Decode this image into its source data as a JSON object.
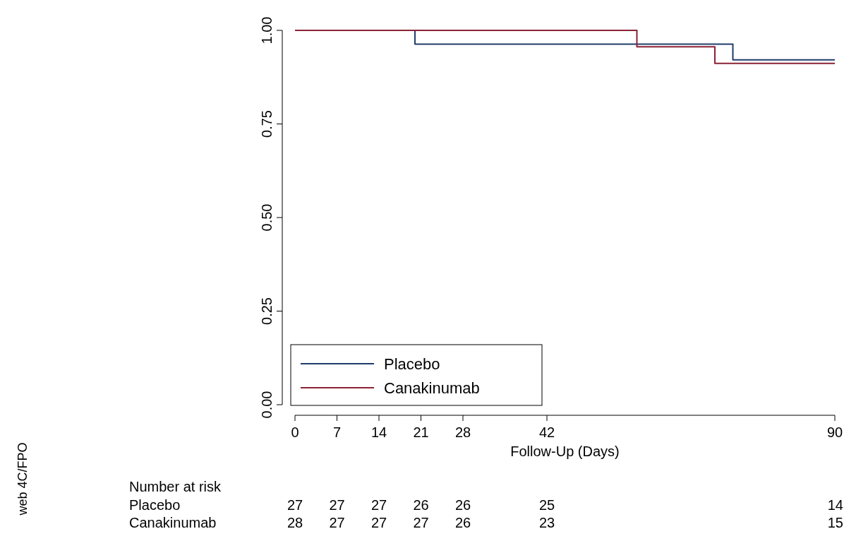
{
  "chart_data": {
    "type": "step",
    "xlabel": "Follow-Up (Days)",
    "xlim": [
      0,
      90
    ],
    "xticks": [
      0,
      7,
      14,
      21,
      28,
      42,
      90
    ],
    "ylim": [
      0,
      1
    ],
    "yticks": [
      {
        "value": 0,
        "label": "0.00"
      },
      {
        "value": 0.25,
        "label": "0.25"
      },
      {
        "value": 0.5,
        "label": "0.50"
      },
      {
        "value": 0.75,
        "label": "0.75"
      },
      {
        "value": 1,
        "label": "1.00"
      }
    ],
    "grid": false,
    "legend": "bottom left",
    "series": [
      {
        "name": "Placebo",
        "color": "#1f3d6b",
        "x": [
          0,
          20,
          73,
          90
        ],
        "values": [
          1,
          0.963,
          0.921,
          0.921
        ]
      },
      {
        "name": "Canakinumab",
        "color": "#8b2234",
        "x": [
          0,
          57,
          70,
          90
        ],
        "values": [
          1,
          0.956,
          0.912,
          0.912
        ]
      }
    ],
    "annotations": [
      "Number at risk",
      "Placebo",
      "27",
      "27",
      "27",
      "26",
      "26",
      "25",
      "14",
      "Canakinumab",
      "28",
      "27",
      "27",
      "27",
      "26",
      "23",
      "15",
      "web 4C/FPO"
    ]
  }
}
